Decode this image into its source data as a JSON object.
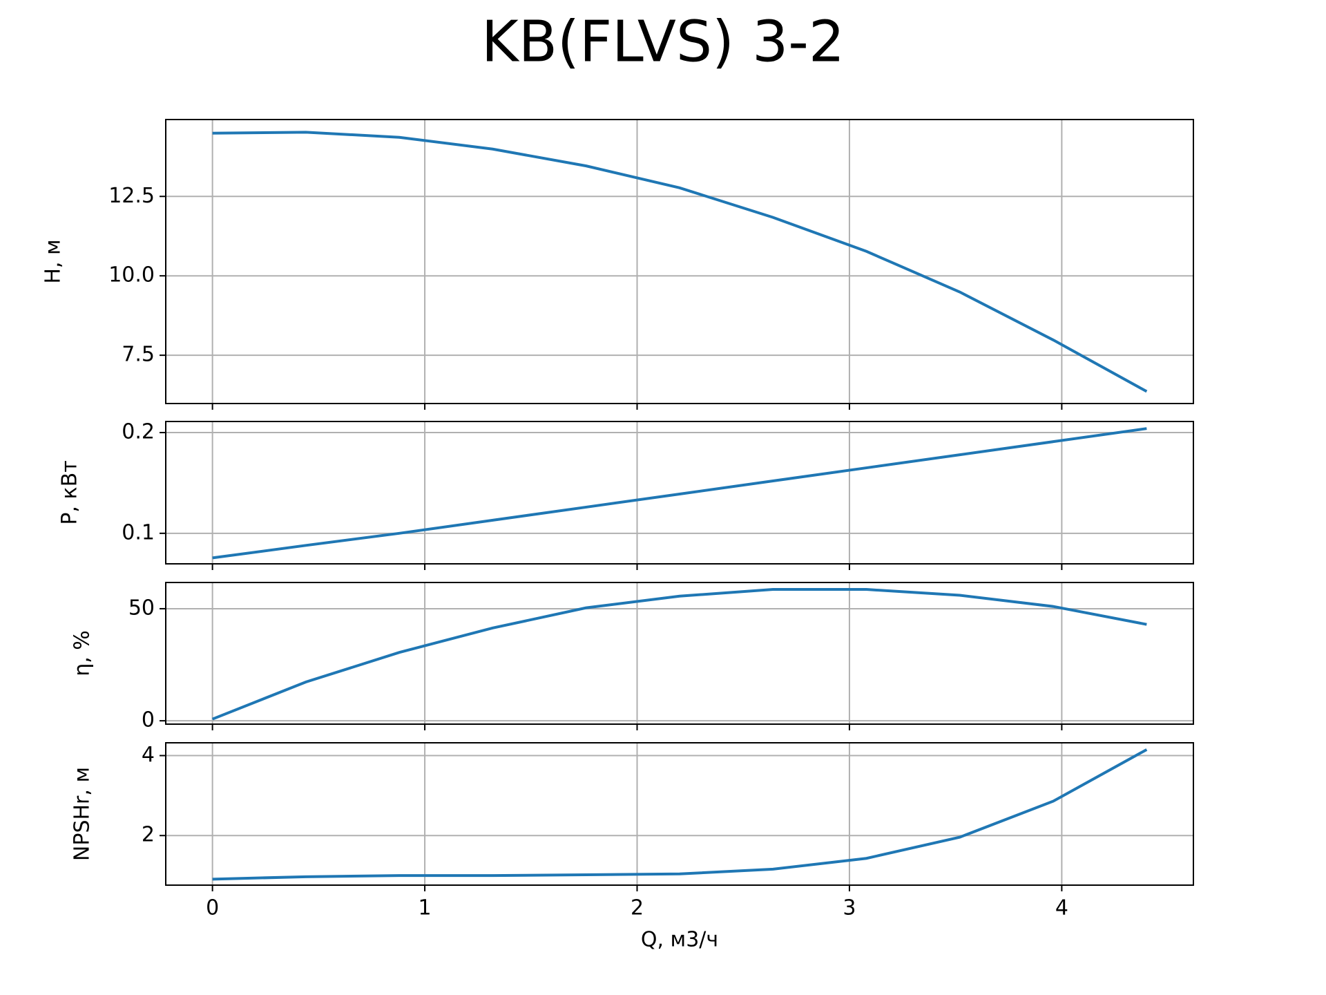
{
  "chart_data": [
    {
      "type": "line",
      "title": "KB(FLVS) 3-2",
      "ylabel": "H, м",
      "x": [
        0,
        0.44,
        0.88,
        1.32,
        1.76,
        2.2,
        2.64,
        3.08,
        3.52,
        3.96,
        4.4
      ],
      "values": [
        14.49,
        14.52,
        14.36,
        13.99,
        13.46,
        12.77,
        11.84,
        10.77,
        9.49,
        7.98,
        6.36
      ],
      "color": "#1f77b4",
      "xlim": [
        -0.22,
        4.62
      ],
      "xticks": [
        0,
        1,
        2,
        3,
        4
      ],
      "ylim": [
        5.98,
        14.92
      ],
      "yticks": [
        {
          "value": 7.5,
          "label": "7.5"
        },
        {
          "value": 10,
          "label": "10.0"
        },
        {
          "value": 12.5,
          "label": "12.5"
        }
      ],
      "grid": true
    },
    {
      "type": "line",
      "ylabel": "P, кВт",
      "x": [
        0,
        0.44,
        0.88,
        1.32,
        1.76,
        2.2,
        2.64,
        3.08,
        3.52,
        3.96,
        4.4
      ],
      "values": [
        0.0756,
        0.088,
        0.1,
        0.113,
        0.126,
        0.139,
        0.152,
        0.165,
        0.178,
        0.191,
        0.204
      ],
      "color": "#1f77b4",
      "xlim": [
        -0.22,
        4.62
      ],
      "xticks": [
        0,
        1,
        2,
        3,
        4
      ],
      "ylim": [
        0.0697,
        0.211
      ],
      "yticks": [
        0.1,
        0.2
      ],
      "grid": true
    },
    {
      "type": "line",
      "ylabel": "η, %",
      "x": [
        0,
        0.44,
        0.88,
        1.32,
        1.76,
        2.2,
        2.64,
        3.08,
        3.52,
        3.96,
        4.4
      ],
      "values": [
        0.75,
        17.3,
        30.5,
        41.4,
        50.4,
        55.6,
        58.6,
        58.6,
        56,
        51,
        43
      ],
      "color": "#1f77b4",
      "xlim": [
        -0.22,
        4.62
      ],
      "xticks": [
        0,
        1,
        2,
        3,
        4
      ],
      "ylim": [
        -1.5,
        61.7
      ],
      "yticks": [
        0,
        50
      ],
      "grid": true
    },
    {
      "type": "line",
      "ylabel": "NPSHr, м",
      "xlabel": "Q, м3/ч",
      "x": [
        0,
        0.44,
        0.88,
        1.32,
        1.76,
        2.2,
        2.64,
        3.08,
        3.52,
        3.96,
        4.4
      ],
      "values": [
        0.91,
        0.97,
        1.0,
        1.0,
        1.02,
        1.04,
        1.16,
        1.43,
        1.96,
        2.86,
        4.15
      ],
      "color": "#1f77b4",
      "xlim": [
        -0.22,
        4.62
      ],
      "xticks": [
        0,
        1,
        2,
        3,
        4
      ],
      "ylim": [
        0.76,
        4.32
      ],
      "yticks": [
        2,
        4
      ],
      "grid": true
    }
  ]
}
